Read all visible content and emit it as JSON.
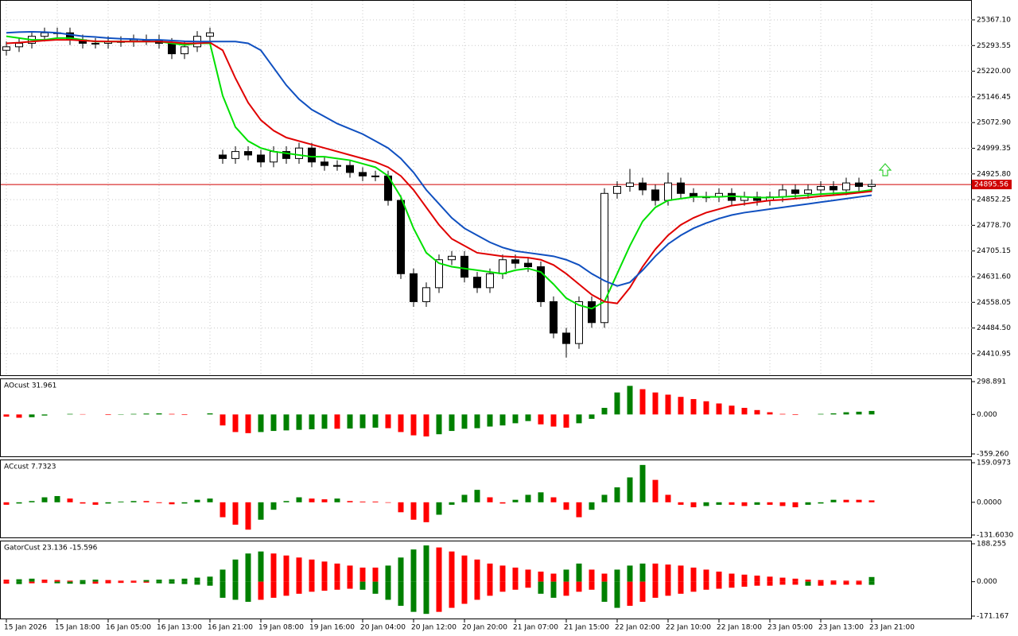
{
  "chart_data": [
    {
      "type": "candlestick",
      "xticks": [
        {
          "value": 0,
          "label": "15 Jan 2026"
        },
        {
          "value": 4,
          "label": "15 Jan 18:00"
        },
        {
          "value": 8,
          "label": "16 Jan 05:00"
        },
        {
          "value": 12,
          "label": "16 Jan 13:00"
        },
        {
          "value": 16,
          "label": "16 Jan 21:00"
        },
        {
          "value": 20,
          "label": "19 Jan 08:00"
        },
        {
          "value": 24,
          "label": "19 Jan 16:00"
        },
        {
          "value": 28,
          "label": "20 Jan 04:00"
        },
        {
          "value": 32,
          "label": "20 Jan 12:00"
        },
        {
          "value": 36,
          "label": "20 Jan 20:00"
        },
        {
          "value": 40,
          "label": "21 Jan 07:00"
        },
        {
          "value": 44,
          "label": "21 Jan 15:00"
        },
        {
          "value": 48,
          "label": "22 Jan 02:00"
        },
        {
          "value": 52,
          "label": "22 Jan 10:00"
        },
        {
          "value": 56,
          "label": "22 Jan 18:00"
        },
        {
          "value": 60,
          "label": "23 Jan 05:00"
        },
        {
          "value": 64,
          "label": "23 Jan 13:00"
        },
        {
          "value": 68,
          "label": "23 Jan 21:00"
        }
      ],
      "ylim": [
        24349.2,
        25424
      ],
      "yticks": [
        {
          "value": 25367.1,
          "label": "25367.10"
        },
        25293.55,
        {
          "value": 25220,
          "label": "25220.00"
        },
        25146.45,
        {
          "value": 25072.9,
          "label": "25072.90"
        },
        24999.35,
        {
          "value": 24925.8,
          "label": "24925.80"
        },
        24852.25,
        {
          "value": 24778.7,
          "label": "24778.70"
        },
        24705.15,
        {
          "value": 24631.6,
          "label": "24631.60"
        },
        24558.05,
        {
          "value": 24484.5,
          "label": "24484.50"
        },
        24410.95
      ],
      "grid": true,
      "bull_color": "#ffffff",
      "bear_color": "#000000",
      "open": [
        25280,
        25290,
        25300,
        25320,
        25330,
        25330,
        25310,
        25300,
        25300,
        25305,
        25305,
        25310,
        25310,
        25300,
        25270,
        25290,
        25320,
        24980,
        24970,
        24990,
        24980,
        24960,
        24990,
        24970,
        25000,
        24960,
        24950,
        24950,
        24930,
        24920,
        24920,
        24850,
        24640,
        24560,
        24600,
        24680,
        24690,
        24630,
        24600,
        24640,
        24680,
        24670,
        24660,
        24560,
        24470,
        24440,
        24560,
        24500,
        24870,
        24890,
        24900,
        24880,
        24850,
        24900,
        24870,
        24860,
        24860,
        24870,
        24850,
        24860,
        24850,
        24860,
        24880,
        24870,
        24880,
        24890,
        24880,
        24900,
        24890
      ],
      "high": [
        25305,
        25315,
        25335,
        25345,
        25345,
        25345,
        25325,
        25315,
        25320,
        25320,
        25325,
        25325,
        25325,
        25315,
        25305,
        25335,
        25345,
        24995,
        25005,
        25005,
        24995,
        25005,
        25005,
        25015,
        25015,
        24975,
        24965,
        24965,
        24945,
        24935,
        24935,
        24865,
        24655,
        24615,
        24695,
        24705,
        24705,
        24645,
        24655,
        24695,
        24695,
        24685,
        24675,
        24575,
        24485,
        24575,
        24575,
        24885,
        24905,
        24940,
        24915,
        24895,
        24930,
        24915,
        24885,
        24875,
        24885,
        24885,
        24875,
        24875,
        24875,
        24895,
        24895,
        24895,
        24905,
        24905,
        24915,
        24915,
        24910
      ],
      "low": [
        25265,
        25275,
        25285,
        25305,
        25315,
        25295,
        25285,
        25285,
        25285,
        25290,
        25290,
        25295,
        25285,
        25255,
        25255,
        25275,
        25305,
        24955,
        24955,
        24965,
        24945,
        24945,
        24955,
        24955,
        24945,
        24935,
        24935,
        24915,
        24905,
        24905,
        24835,
        24625,
        24545,
        24545,
        24585,
        24665,
        24615,
        24585,
        24585,
        24625,
        24655,
        24645,
        24545,
        24455,
        24400,
        24425,
        24485,
        24485,
        24855,
        24875,
        24865,
        24835,
        24835,
        24855,
        24845,
        24845,
        24845,
        24835,
        24835,
        24835,
        24835,
        24845,
        24855,
        24855,
        24865,
        24865,
        24865,
        24875,
        24875
      ],
      "close": [
        25290,
        25300,
        25320,
        25330,
        25330,
        25310,
        25300,
        25300,
        25305,
        25305,
        25310,
        25310,
        25300,
        25270,
        25290,
        25320,
        25330,
        24970,
        24990,
        24980,
        24960,
        24990,
        24970,
        25000,
        24960,
        24950,
        24950,
        24930,
        24920,
        24920,
        24850,
        24640,
        24560,
        24600,
        24680,
        24690,
        24630,
        24600,
        24640,
        24680,
        24670,
        24660,
        24560,
        24470,
        24440,
        24560,
        24500,
        24870,
        24890,
        24900,
        24880,
        24850,
        24900,
        24870,
        24860,
        24860,
        24870,
        24850,
        24860,
        24850,
        24860,
        24880,
        24870,
        24880,
        24890,
        24880,
        24900,
        24890,
        24895.56
      ],
      "lines": [
        {
          "color": "#00e000",
          "values": [
            25320,
            25315,
            25310,
            25310,
            25315,
            25315,
            25310,
            25305,
            25305,
            25305,
            25305,
            25305,
            25305,
            25300,
            25295,
            25300,
            25300,
            25150,
            25060,
            25020,
            25000,
            24990,
            24985,
            24980,
            24975,
            24975,
            24970,
            24965,
            24955,
            24945,
            24920,
            24860,
            24770,
            24700,
            24670,
            24660,
            24655,
            24650,
            24645,
            24640,
            24650,
            24655,
            24645,
            24610,
            24570,
            24550,
            24540,
            24560,
            24640,
            24720,
            24790,
            24830,
            24850,
            24855,
            24860,
            24860,
            24860,
            24862,
            24860,
            24858,
            24858,
            24860,
            24862,
            24865,
            24868,
            24870,
            24872,
            24875,
            24880
          ]
        },
        {
          "color": "#e00000",
          "values": [
            25300,
            25302,
            25305,
            25308,
            25310,
            25310,
            25308,
            25306,
            25305,
            25305,
            25305,
            25305,
            25305,
            25303,
            25300,
            25300,
            25302,
            25280,
            25200,
            25130,
            25080,
            25050,
            25030,
            25020,
            25010,
            25000,
            24990,
            24980,
            24970,
            24960,
            24945,
            24920,
            24880,
            24830,
            24780,
            24740,
            24720,
            24700,
            24695,
            24690,
            24688,
            24686,
            24680,
            24665,
            24640,
            24610,
            24580,
            24560,
            24555,
            24600,
            24660,
            24710,
            24750,
            24780,
            24800,
            24815,
            24825,
            24835,
            24840,
            24845,
            24850,
            24852,
            24855,
            24858,
            24862,
            24865,
            24868,
            24872,
            24876
          ]
        },
        {
          "color": "#1050c0",
          "values": [
            25330,
            25332,
            25333,
            25332,
            25330,
            25325,
            25320,
            25318,
            25315,
            25313,
            25312,
            25310,
            25310,
            25308,
            25306,
            25305,
            25305,
            25305,
            25305,
            25300,
            25280,
            25230,
            25180,
            25140,
            25110,
            25090,
            25070,
            25055,
            25040,
            25020,
            25000,
            24970,
            24930,
            24880,
            24840,
            24800,
            24770,
            24750,
            24730,
            24715,
            24705,
            24700,
            24695,
            24690,
            24680,
            24665,
            24640,
            24620,
            24605,
            24615,
            24650,
            24690,
            24725,
            24750,
            24770,
            24785,
            24798,
            24808,
            24815,
            24820,
            24825,
            24830,
            24835,
            24840,
            24845,
            24850,
            24855,
            24860,
            24865
          ]
        }
      ],
      "current_price": 24895.56,
      "current_price_color": "#d00000"
    },
    {
      "type": "histogram",
      "title": "AOcust 31.961",
      "up_color": "#008000",
      "down_color": "#ff0000",
      "ylim": [
        -359.26,
        298.891
      ],
      "yticks": [
        298.891,
        {
          "value": 0,
          "label": "0.000"
        },
        {
          "value": -359.26,
          "label": "-359.260"
        }
      ],
      "values": [
        -20,
        -30,
        -25,
        -10,
        0,
        5,
        3,
        0,
        -5,
        -3,
        5,
        8,
        10,
        5,
        -5,
        0,
        10,
        -100,
        -160,
        -170,
        -160,
        -150,
        -145,
        -140,
        -135,
        -130,
        -130,
        -128,
        -125,
        -120,
        -125,
        -160,
        -190,
        -200,
        -180,
        -150,
        -130,
        -125,
        -110,
        -100,
        -80,
        -60,
        -90,
        -110,
        -120,
        -80,
        -40,
        60,
        200,
        260,
        230,
        200,
        180,
        160,
        140,
        120,
        100,
        80,
        60,
        40,
        20,
        5,
        -5,
        0,
        5,
        10,
        20,
        25,
        31.961
      ]
    },
    {
      "type": "histogram",
      "title": "ACcust 7.7323",
      "up_color": "#008000",
      "down_color": "#ff0000",
      "ylim": [
        -131.603,
        159.0973
      ],
      "yticks": [
        159.0973,
        {
          "value": 0,
          "label": "0.0000"
        },
        {
          "value": -131.603,
          "label": "-131.6030"
        }
      ],
      "values": [
        -10,
        -5,
        5,
        20,
        25,
        15,
        -5,
        -10,
        -5,
        3,
        5,
        5,
        -3,
        -8,
        -5,
        10,
        15,
        -60,
        -90,
        -110,
        -70,
        -30,
        5,
        20,
        15,
        12,
        15,
        5,
        3,
        3,
        -2,
        -40,
        -70,
        -80,
        -50,
        -10,
        30,
        50,
        20,
        -5,
        10,
        30,
        40,
        20,
        -30,
        -60,
        -30,
        30,
        60,
        100,
        150,
        90,
        30,
        -10,
        -20,
        -15,
        -10,
        -10,
        -15,
        -10,
        -10,
        -15,
        -20,
        -10,
        -5,
        10,
        10,
        10,
        7.7323
      ]
    },
    {
      "type": "gator",
      "title": "GatorCust 23.136 -15.596",
      "up_color": "#008000",
      "down_color": "#ff0000",
      "ylim": [
        -171.167,
        188.255
      ],
      "yticks": [
        188.255,
        {
          "value": 0,
          "label": "0.000"
        },
        -171.167
      ],
      "upper": [
        10,
        12,
        15,
        10,
        8,
        5,
        8,
        10,
        8,
        5,
        5,
        8,
        10,
        12,
        15,
        20,
        25,
        60,
        110,
        140,
        150,
        140,
        130,
        120,
        110,
        100,
        90,
        80,
        70,
        70,
        80,
        120,
        160,
        180,
        170,
        150,
        130,
        110,
        90,
        80,
        70,
        60,
        50,
        40,
        60,
        90,
        60,
        40,
        60,
        80,
        90,
        90,
        85,
        80,
        70,
        60,
        50,
        40,
        35,
        30,
        25,
        20,
        15,
        10,
        8,
        6,
        5,
        5,
        23.136
      ],
      "lower": [
        -10,
        -12,
        -8,
        -6,
        -8,
        -10,
        -12,
        -10,
        -8,
        -6,
        -5,
        -5,
        -8,
        -10,
        -12,
        -15,
        -20,
        -80,
        -90,
        -100,
        -90,
        -80,
        -70,
        -60,
        -50,
        -45,
        -40,
        -35,
        -40,
        -60,
        -90,
        -120,
        -150,
        -160,
        -150,
        -130,
        -110,
        -90,
        -70,
        -50,
        -40,
        -30,
        -60,
        -80,
        -70,
        -50,
        -40,
        -100,
        -130,
        -120,
        -100,
        -80,
        -70,
        -60,
        -50,
        -40,
        -35,
        -30,
        -25,
        -20,
        -20,
        -15,
        -15,
        -20,
        -20,
        -15,
        -15,
        -15,
        -15.596
      ]
    }
  ]
}
